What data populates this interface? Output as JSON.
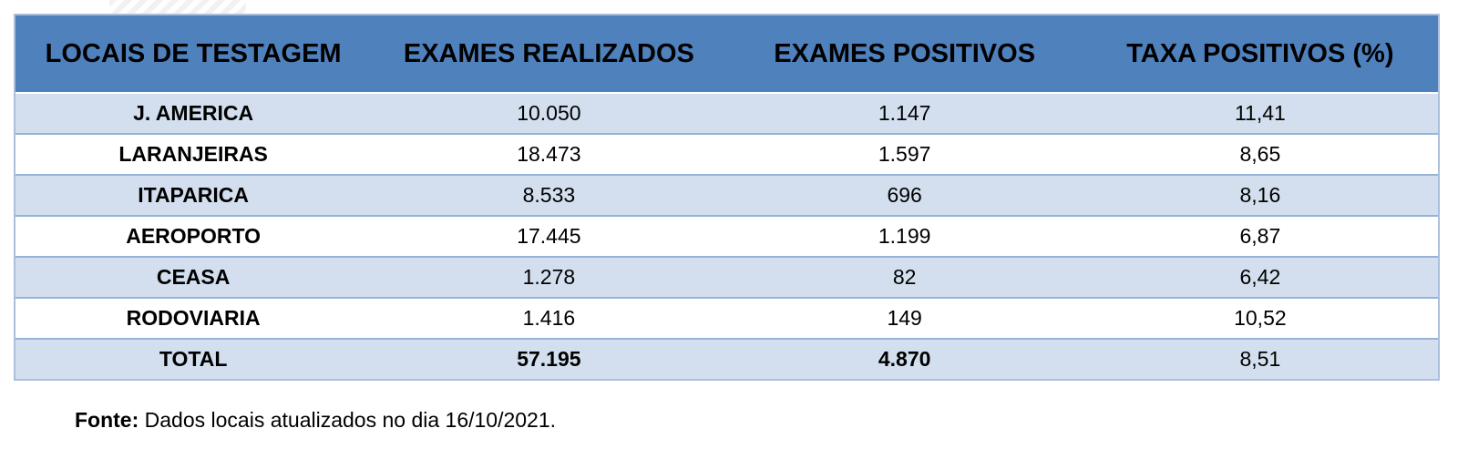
{
  "table": {
    "headers": [
      "LOCAIS DE TESTAGEM",
      "EXAMES REALIZADOS",
      "EXAMES POSITIVOS",
      "TAXA POSITIVOS (%)"
    ],
    "rows": [
      {
        "local": "J. AMERICA",
        "realizados": "10.050",
        "positivos": "1.147",
        "taxa": "11,41"
      },
      {
        "local": "LARANJEIRAS",
        "realizados": "18.473",
        "positivos": "1.597",
        "taxa": "8,65"
      },
      {
        "local": "ITAPARICA",
        "realizados": "8.533",
        "positivos": "696",
        "taxa": "8,16"
      },
      {
        "local": "AEROPORTO",
        "realizados": "17.445",
        "positivos": "1.199",
        "taxa": "6,87"
      },
      {
        "local": "CEASA",
        "realizados": "1.278",
        "positivos": "82",
        "taxa": "6,42"
      },
      {
        "local": "RODOVIARIA",
        "realizados": "1.416",
        "positivos": "149",
        "taxa": "10,52"
      }
    ],
    "total": {
      "local": "TOTAL",
      "realizados": "57.195",
      "positivos": "4.870",
      "taxa": "8,51"
    }
  },
  "source": {
    "label": "Fonte:",
    "text": " Dados locais atualizados no dia 16/10/2021."
  },
  "colors": {
    "header_bg": "#4f81bd",
    "band_odd": "#d3dfee",
    "band_even": "#ffffff",
    "border": "#95b3d7"
  }
}
